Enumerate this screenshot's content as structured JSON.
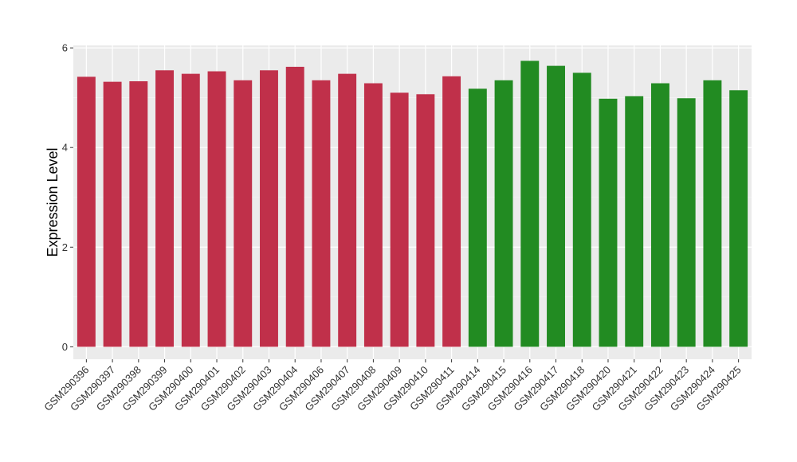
{
  "chart_data": {
    "type": "bar",
    "title": "",
    "xlabel": "",
    "ylabel": "Expression Level",
    "ylim": [
      -0.25,
      6.05
    ],
    "yticks": [
      0,
      2,
      4,
      6
    ],
    "grid": true,
    "legend": "none",
    "categories": [
      "GSM290396",
      "GSM290397",
      "GSM290398",
      "GSM290399",
      "GSM290400",
      "GSM290401",
      "GSM290402",
      "GSM290403",
      "GSM290404",
      "GSM290406",
      "GSM290407",
      "GSM290408",
      "GSM290409",
      "GSM290410",
      "GSM290411",
      "GSM290414",
      "GSM290415",
      "GSM290416",
      "GSM290417",
      "GSM290418",
      "GSM290420",
      "GSM290421",
      "GSM290422",
      "GSM290423",
      "GSM290424",
      "GSM290425"
    ],
    "values": [
      5.42,
      5.32,
      5.33,
      5.55,
      5.48,
      5.53,
      5.35,
      5.55,
      5.62,
      5.35,
      5.48,
      5.29,
      5.1,
      5.07,
      5.43,
      5.18,
      5.35,
      5.74,
      5.64,
      5.5,
      4.98,
      5.03,
      5.29,
      4.99,
      5.35,
      5.15
    ],
    "groups": [
      0,
      0,
      0,
      0,
      0,
      0,
      0,
      0,
      0,
      0,
      0,
      0,
      0,
      0,
      0,
      1,
      1,
      1,
      1,
      1,
      1,
      1,
      1,
      1,
      1,
      1
    ],
    "group_colors": [
      "#C0304A",
      "#228B22"
    ]
  }
}
